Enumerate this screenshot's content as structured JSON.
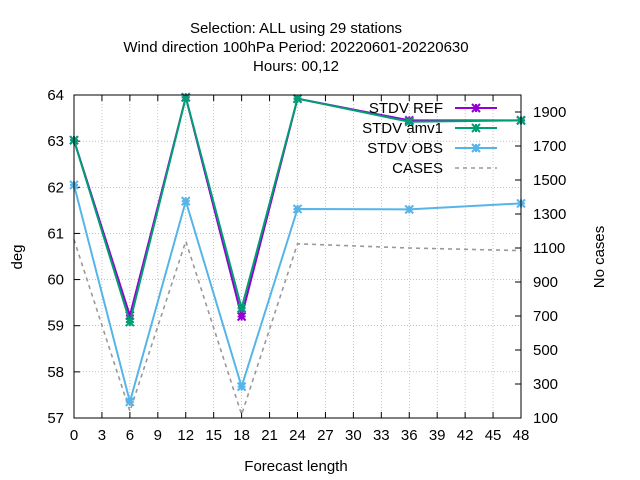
{
  "chart_data": {
    "type": "line",
    "title_lines": [
      "Selection: ALL using    29 stations",
      "Wind direction 100hPa   Period: 20220601-20220630",
      "Hours:  00,12"
    ],
    "xlabel": "Forecast length",
    "ylabel": "deg",
    "y2label": "No cases",
    "xlim": [
      0,
      48
    ],
    "ylim": [
      57,
      64
    ],
    "y2lim": [
      100,
      2000
    ],
    "x_ticks": [
      "0",
      "3",
      "6",
      "9",
      "12",
      "15",
      "18",
      "21",
      "24",
      "27",
      "30",
      "33",
      "36",
      "39",
      "42",
      "45",
      "48"
    ],
    "y_ticks": [
      "57",
      "58",
      "59",
      "60",
      "61",
      "62",
      "63",
      "64"
    ],
    "y2_ticks": [
      "100",
      "300",
      "500",
      "700",
      "900",
      "1100",
      "1300",
      "1500",
      "1700",
      "1900"
    ],
    "grid": true,
    "legend_position": "top-right",
    "series": [
      {
        "name": "STDV REF",
        "axis": "y",
        "color": "#9400d3",
        "style": "solid",
        "marker": "x",
        "x": [
          0,
          6,
          12,
          18,
          24,
          36,
          48
        ],
        "values": [
          63.02,
          59.22,
          63.95,
          59.2,
          63.92,
          63.45,
          63.45
        ]
      },
      {
        "name": "STDV amv1",
        "axis": "y",
        "color": "#009e73",
        "style": "solid",
        "marker": "x",
        "x": [
          0,
          6,
          12,
          18,
          24,
          36,
          48
        ],
        "values": [
          63.02,
          59.08,
          63.95,
          59.38,
          63.92,
          63.42,
          63.45
        ]
      },
      {
        "name": "STDV OBS",
        "axis": "y",
        "color": "#56b4e9",
        "style": "solid",
        "marker": "x",
        "x": [
          0,
          6,
          12,
          18,
          24,
          36,
          48
        ],
        "values": [
          62.05,
          57.35,
          61.7,
          57.68,
          61.53,
          61.52,
          61.65
        ]
      },
      {
        "name": "CASES",
        "axis": "y2",
        "color": "#999999",
        "style": "dashed",
        "marker": "none",
        "x": [
          0,
          6,
          12,
          18,
          24,
          36,
          48
        ],
        "values": [
          1150,
          140,
          1140,
          120,
          1125,
          1100,
          1085
        ]
      }
    ]
  }
}
